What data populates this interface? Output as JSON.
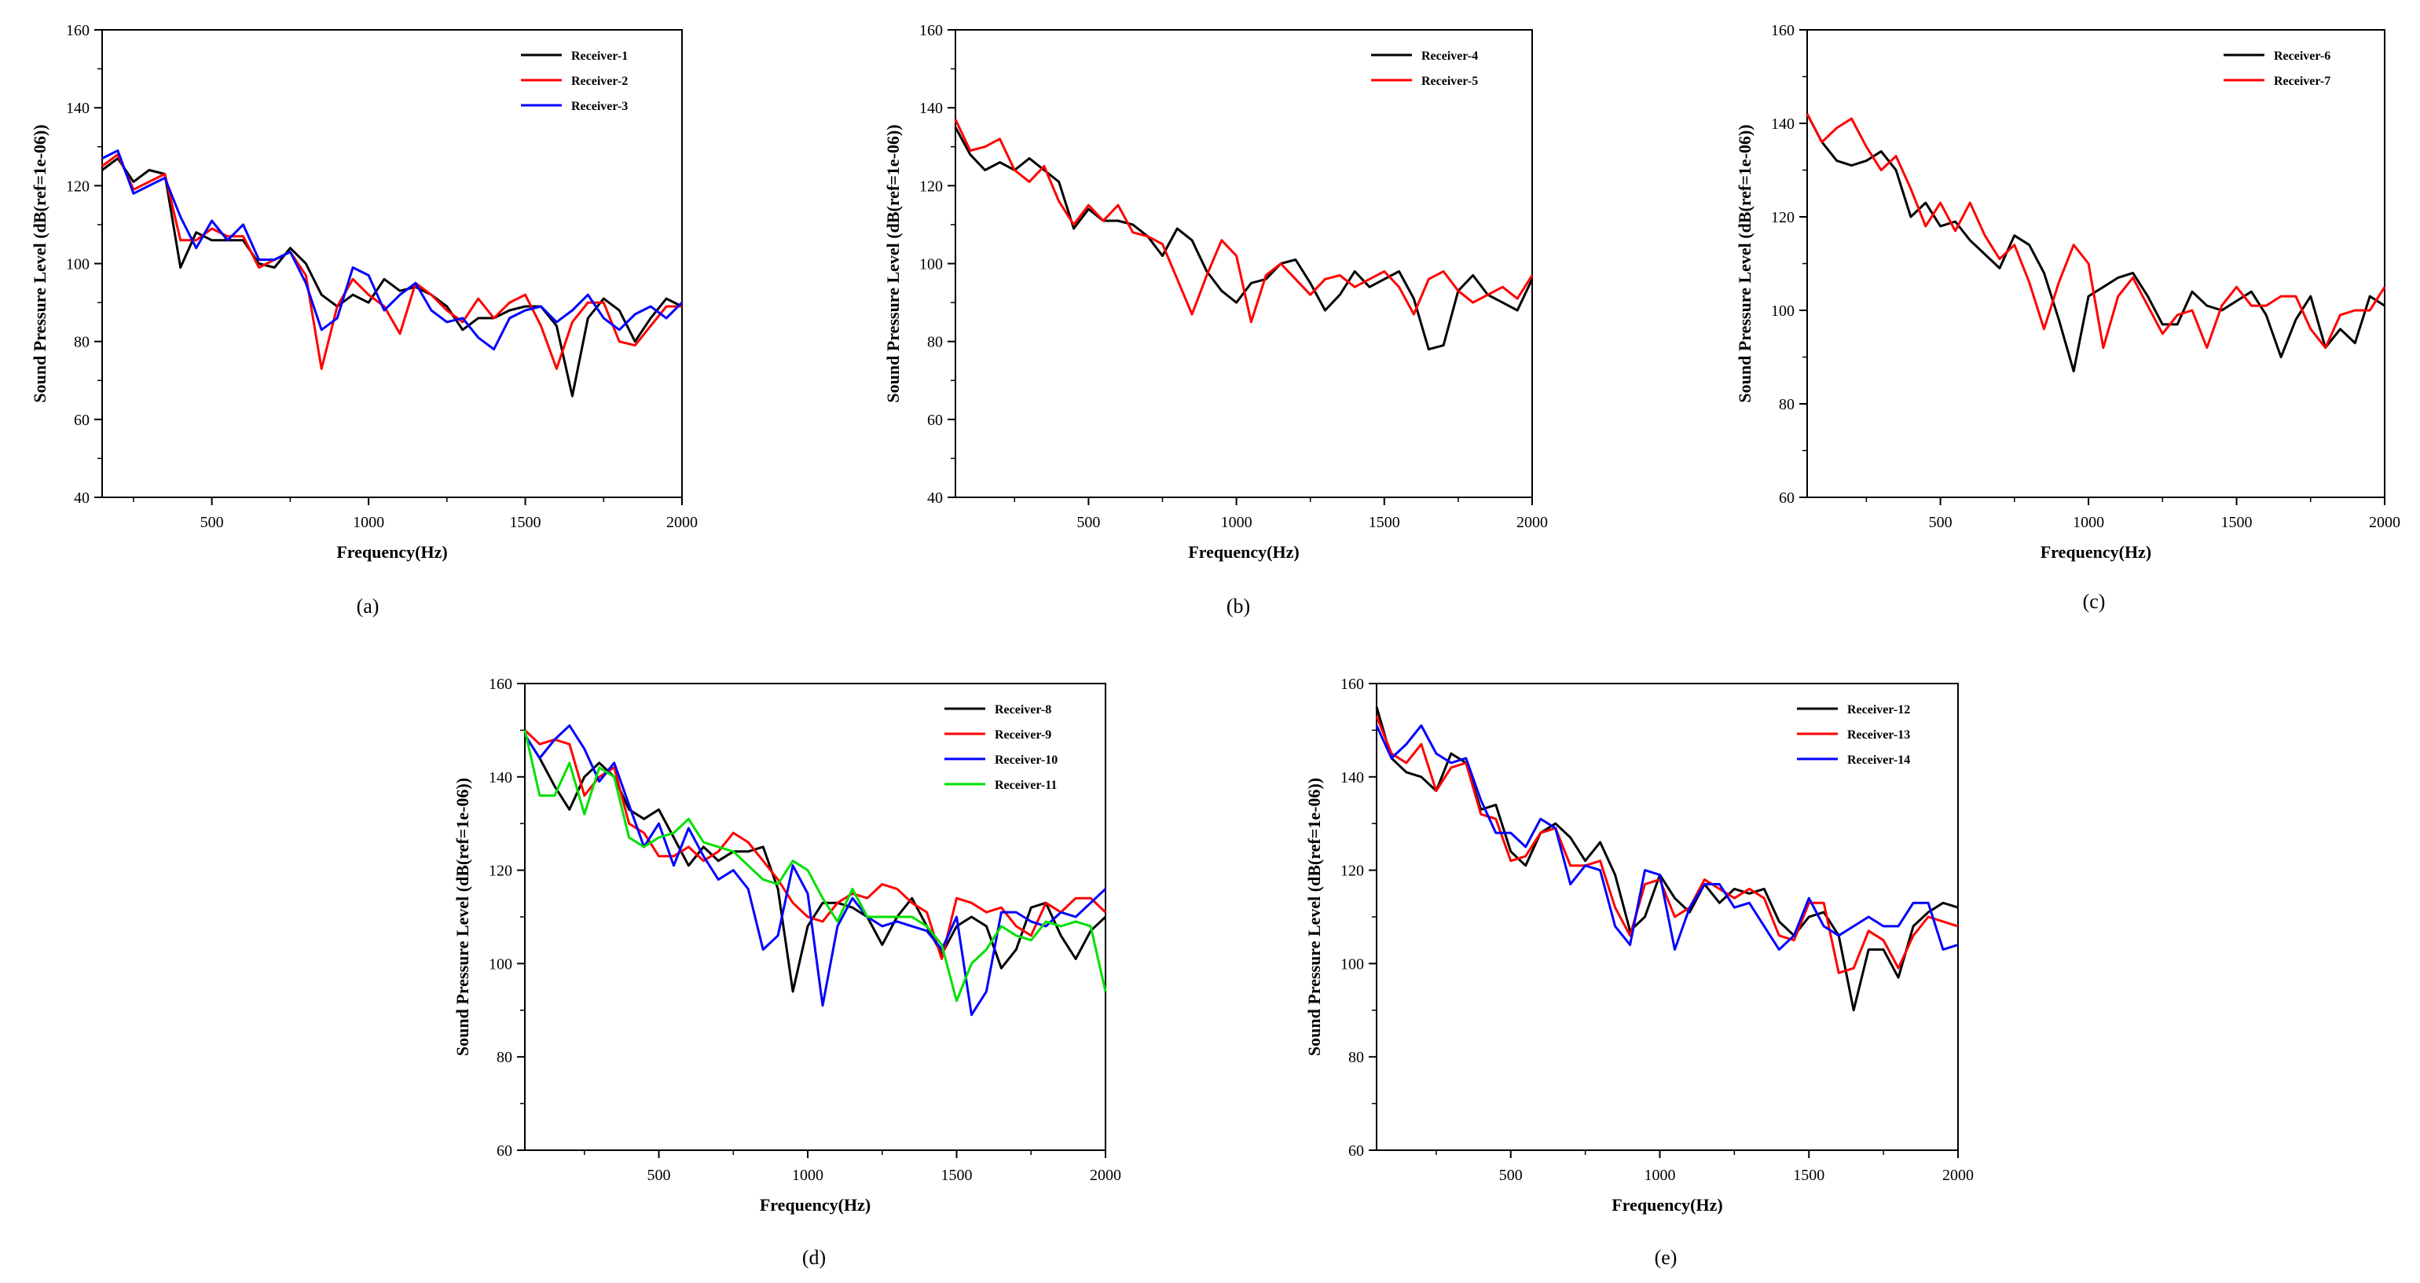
{
  "chart_data": [
    {
      "type": "line",
      "caption": "(a)",
      "xlabel": "Frequency(Hz)",
      "ylabel": "Sound Pressure Level (dB(ref=1e-06))",
      "xlim": [
        150,
        2000
      ],
      "ylim": [
        40,
        160
      ],
      "xticks": [
        500,
        1000,
        1500,
        2000
      ],
      "yticks": [
        40,
        60,
        80,
        100,
        120,
        140,
        160
      ],
      "legend_position": "top-right",
      "x": [
        150,
        200,
        250,
        300,
        350,
        400,
        450,
        500,
        550,
        600,
        650,
        700,
        750,
        800,
        850,
        900,
        950,
        1000,
        1050,
        1100,
        1150,
        1200,
        1250,
        1300,
        1350,
        1400,
        1450,
        1500,
        1550,
        1600,
        1650,
        1700,
        1750,
        1800,
        1850,
        1900,
        1950,
        2000
      ],
      "series": [
        {
          "name": "Receiver-1",
          "color": "#000000",
          "values": [
            124,
            127,
            121,
            124,
            123,
            99,
            108,
            106,
            106,
            106,
            100,
            99,
            104,
            100,
            92,
            89,
            92,
            90,
            96,
            93,
            94,
            92,
            89,
            83,
            86,
            86,
            88,
            89,
            89,
            84,
            66,
            86,
            91,
            88,
            80,
            86,
            91,
            89
          ]
        },
        {
          "name": "Receiver-2",
          "color": "#ff0000",
          "values": [
            125,
            128,
            119,
            121,
            123,
            106,
            106,
            109,
            107,
            107,
            99,
            101,
            103,
            97,
            73,
            89,
            96,
            92,
            89,
            82,
            95,
            92,
            88,
            85,
            91,
            86,
            90,
            92,
            84,
            73,
            85,
            90,
            90,
            80,
            79,
            84,
            89,
            89
          ]
        },
        {
          "name": "Receiver-3",
          "color": "#0000ff",
          "values": [
            127,
            129,
            118,
            120,
            122,
            112,
            104,
            111,
            106,
            110,
            101,
            101,
            103,
            95,
            83,
            86,
            99,
            97,
            88,
            92,
            95,
            88,
            85,
            86,
            81,
            78,
            86,
            88,
            89,
            85,
            88,
            92,
            86,
            83,
            87,
            89,
            86,
            90
          ]
        }
      ]
    },
    {
      "type": "line",
      "caption": "(b)",
      "xlabel": "Frequency(Hz)",
      "ylabel": "Sound Pressure Level (dB(ref=1e-06))",
      "xlim": [
        50,
        2000
      ],
      "ylim": [
        40,
        160
      ],
      "xticks": [
        500,
        1000,
        1500,
        2000
      ],
      "yticks": [
        40,
        60,
        80,
        100,
        120,
        140,
        160
      ],
      "legend_position": "top-right",
      "x": [
        50,
        100,
        150,
        200,
        250,
        300,
        350,
        400,
        450,
        500,
        550,
        600,
        650,
        700,
        750,
        800,
        850,
        900,
        950,
        1000,
        1050,
        1100,
        1150,
        1200,
        1250,
        1300,
        1350,
        1400,
        1450,
        1500,
        1550,
        1600,
        1650,
        1700,
        1750,
        1800,
        1850,
        1900,
        1950,
        2000
      ],
      "series": [
        {
          "name": "Receiver-4",
          "color": "#000000",
          "values": [
            135,
            128,
            124,
            126,
            124,
            127,
            124,
            121,
            109,
            114,
            111,
            111,
            110,
            107,
            102,
            109,
            106,
            98,
            93,
            90,
            95,
            96,
            100,
            101,
            95,
            88,
            92,
            98,
            94,
            96,
            98,
            91,
            78,
            79,
            93,
            97,
            92,
            90,
            88,
            96
          ]
        },
        {
          "name": "Receiver-5",
          "color": "#ff0000",
          "values": [
            137,
            129,
            130,
            132,
            124,
            121,
            125,
            116,
            110,
            115,
            111,
            115,
            108,
            107,
            105,
            96,
            87,
            97,
            106,
            102,
            85,
            97,
            100,
            96,
            92,
            96,
            97,
            94,
            96,
            98,
            94,
            87,
            96,
            98,
            93,
            90,
            92,
            94,
            91,
            97
          ]
        }
      ]
    },
    {
      "type": "line",
      "caption": "(c)",
      "xlabel": "Frequency(Hz)",
      "ylabel": "Sound Pressure Level (dB(ref=1e-06))",
      "xlim": [
        50,
        2000
      ],
      "ylim": [
        60,
        160
      ],
      "xticks": [
        500,
        1000,
        1500,
        2000
      ],
      "yticks": [
        60,
        80,
        100,
        120,
        140,
        160
      ],
      "legend_position": "top-right",
      "x": [
        50,
        100,
        150,
        200,
        250,
        300,
        350,
        400,
        450,
        500,
        550,
        600,
        650,
        700,
        750,
        800,
        850,
        900,
        950,
        1000,
        1050,
        1100,
        1150,
        1200,
        1250,
        1300,
        1350,
        1400,
        1450,
        1500,
        1550,
        1600,
        1650,
        1700,
        1750,
        1800,
        1850,
        1900,
        1950,
        2000
      ],
      "series": [
        {
          "name": "Receiver-6",
          "color": "#000000",
          "values": [
            142,
            136,
            132,
            131,
            132,
            134,
            130,
            120,
            123,
            118,
            119,
            115,
            112,
            109,
            116,
            114,
            108,
            98,
            87,
            103,
            105,
            107,
            108,
            103,
            97,
            97,
            104,
            101,
            100,
            102,
            104,
            99,
            90,
            98,
            103,
            92,
            96,
            93,
            103,
            101
          ]
        },
        {
          "name": "Receiver-7",
          "color": "#ff0000",
          "values": [
            142,
            136,
            139,
            141,
            135,
            130,
            133,
            126,
            118,
            123,
            117,
            123,
            116,
            111,
            114,
            106,
            96,
            106,
            114,
            110,
            92,
            103,
            107,
            101,
            95,
            99,
            100,
            92,
            101,
            105,
            101,
            101,
            103,
            103,
            96,
            92,
            99,
            100,
            100,
            105
          ]
        }
      ]
    },
    {
      "type": "line",
      "caption": "(d)",
      "xlabel": "Frequency(Hz)",
      "ylabel": "Sound Pressure Level (dB(ref=1e-06))",
      "xlim": [
        50,
        2000
      ],
      "ylim": [
        60,
        160
      ],
      "xticks": [
        500,
        1000,
        1500,
        2000
      ],
      "yticks": [
        60,
        80,
        100,
        120,
        140,
        160
      ],
      "legend_position": "top-right",
      "x": [
        50,
        100,
        150,
        200,
        250,
        300,
        350,
        400,
        450,
        500,
        550,
        600,
        650,
        700,
        750,
        800,
        850,
        900,
        950,
        1000,
        1050,
        1100,
        1150,
        1200,
        1250,
        1300,
        1350,
        1400,
        1450,
        1500,
        1550,
        1600,
        1650,
        1700,
        1750,
        1800,
        1850,
        1900,
        1950,
        2000
      ],
      "series": [
        {
          "name": "Receiver-8",
          "color": "#000000",
          "values": [
            149,
            144,
            138,
            133,
            140,
            143,
            140,
            133,
            131,
            133,
            127,
            121,
            125,
            122,
            124,
            124,
            125,
            116,
            94,
            108,
            113,
            113,
            112,
            110,
            104,
            110,
            114,
            108,
            102,
            108,
            110,
            108,
            99,
            103,
            112,
            113,
            106,
            101,
            107,
            110
          ]
        },
        {
          "name": "Receiver-9",
          "color": "#ff0000",
          "values": [
            150,
            147,
            148,
            147,
            136,
            140,
            142,
            130,
            128,
            123,
            123,
            125,
            122,
            124,
            128,
            126,
            122,
            118,
            113,
            110,
            109,
            113,
            115,
            114,
            117,
            116,
            113,
            111,
            101,
            114,
            113,
            111,
            112,
            108,
            106,
            113,
            111,
            114,
            114,
            111
          ]
        },
        {
          "name": "Receiver-10",
          "color": "#0000ff",
          "values": [
            149,
            144,
            148,
            151,
            146,
            139,
            143,
            134,
            125,
            130,
            121,
            129,
            123,
            118,
            120,
            116,
            103,
            106,
            121,
            115,
            91,
            108,
            114,
            110,
            108,
            109,
            108,
            107,
            103,
            110,
            89,
            94,
            111,
            111,
            109,
            108,
            111,
            110,
            113,
            116
          ]
        },
        {
          "name": "Receiver-11",
          "color": "#00e000",
          "values": [
            150,
            136,
            136,
            143,
            132,
            142,
            140,
            127,
            125,
            127,
            128,
            131,
            126,
            125,
            124,
            121,
            118,
            117,
            122,
            120,
            114,
            109,
            116,
            110,
            110,
            110,
            110,
            108,
            104,
            92,
            100,
            103,
            108,
            106,
            105,
            109,
            108,
            109,
            108,
            94
          ]
        }
      ]
    },
    {
      "type": "line",
      "caption": "(e)",
      "xlabel": "Frequency(Hz)",
      "ylabel": "Sound Pressure Level (dB(ref=1e-06))",
      "xlim": [
        50,
        2000
      ],
      "ylim": [
        60,
        160
      ],
      "xticks": [
        500,
        1000,
        1500,
        2000
      ],
      "yticks": [
        60,
        80,
        100,
        120,
        140,
        160
      ],
      "legend_position": "top-right",
      "x": [
        50,
        100,
        150,
        200,
        250,
        300,
        350,
        400,
        450,
        500,
        550,
        600,
        650,
        700,
        750,
        800,
        850,
        900,
        950,
        1000,
        1050,
        1100,
        1150,
        1200,
        1250,
        1300,
        1350,
        1400,
        1450,
        1500,
        1550,
        1600,
        1650,
        1700,
        1750,
        1800,
        1850,
        1900,
        1950,
        2000
      ],
      "series": [
        {
          "name": "Receiver-12",
          "color": "#000000",
          "values": [
            155,
            144,
            141,
            140,
            137,
            145,
            143,
            133,
            134,
            124,
            121,
            128,
            130,
            127,
            122,
            126,
            119,
            107,
            110,
            119,
            114,
            111,
            117,
            113,
            116,
            115,
            116,
            109,
            106,
            110,
            111,
            106,
            90,
            103,
            103,
            97,
            108,
            111,
            113,
            112
          ]
        },
        {
          "name": "Receiver-13",
          "color": "#ff0000",
          "values": [
            153,
            145,
            143,
            147,
            137,
            142,
            143,
            132,
            131,
            122,
            123,
            128,
            129,
            121,
            121,
            122,
            112,
            106,
            117,
            118,
            110,
            112,
            118,
            116,
            114,
            116,
            114,
            106,
            105,
            113,
            113,
            98,
            99,
            107,
            105,
            99,
            106,
            110,
            109,
            108
          ]
        },
        {
          "name": "Receiver-14",
          "color": "#0000ff",
          "values": [
            151,
            144,
            147,
            151,
            145,
            143,
            144,
            135,
            128,
            128,
            125,
            131,
            129,
            117,
            121,
            120,
            108,
            104,
            120,
            119,
            103,
            112,
            117,
            117,
            112,
            113,
            108,
            103,
            106,
            114,
            108,
            106,
            108,
            110,
            108,
            108,
            113,
            113,
            103,
            104
          ]
        }
      ]
    }
  ]
}
